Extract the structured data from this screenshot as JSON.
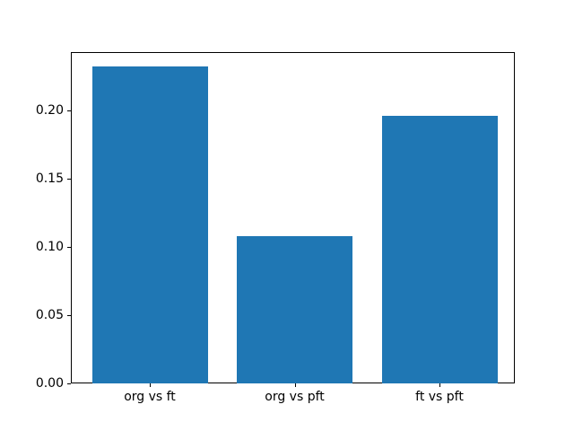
{
  "chart_data": {
    "type": "bar",
    "title": "",
    "xlabel": "",
    "ylabel": "",
    "categories": [
      "org vs ft",
      "org vs pft",
      "ft vs pft"
    ],
    "values": [
      0.232,
      0.108,
      0.196
    ],
    "ylim": [
      0,
      0.2428
    ],
    "yticks": {
      "values": [
        0.0,
        0.05,
        0.1,
        0.15,
        0.2
      ],
      "labels": [
        "0.00",
        "0.05",
        "0.10",
        "0.15",
        "0.20"
      ]
    },
    "grid": false,
    "legend": null,
    "bar_color": "#1f77b4",
    "axis_color": "#000000",
    "text_color": "#000000",
    "background_color": "#ffffff"
  }
}
